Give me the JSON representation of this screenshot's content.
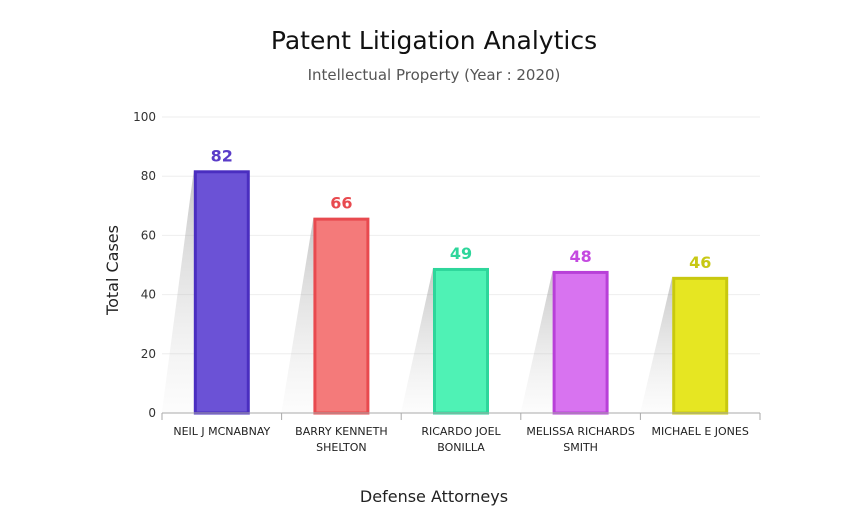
{
  "chart_data": {
    "type": "bar",
    "title": "Patent Litigation Analytics",
    "subtitle": "Intellectual Property (Year : 2020)",
    "xlabel": "Defense Attorneys",
    "ylabel": "Total Cases",
    "ylim": [
      0,
      100
    ],
    "yticks": [
      0,
      20,
      40,
      60,
      80,
      100
    ],
    "grid": true,
    "categories": [
      [
        "NEIL J MCNABNAY"
      ],
      [
        "BARRY KENNETH",
        "SHELTON"
      ],
      [
        "RICARDO JOEL",
        "BONILLA"
      ],
      [
        "MELISSA RICHARDS",
        "SMITH"
      ],
      [
        "MICHAEL E JONES"
      ]
    ],
    "values": [
      82,
      66,
      49,
      48,
      46
    ],
    "colors": [
      {
        "fill": "#6b52d6",
        "stroke": "#4a2ec0",
        "label": "#5a3cc8"
      },
      {
        "fill": "#f47a7a",
        "stroke": "#e84a4f",
        "label": "#e84a4f"
      },
      {
        "fill": "#4ff2b5",
        "stroke": "#2ed69b",
        "label": "#2ed69b"
      },
      {
        "fill": "#d873f0",
        "stroke": "#b840d8",
        "label": "#c44ae0"
      },
      {
        "fill": "#e6e622",
        "stroke": "#c8c810",
        "label": "#c8c814"
      }
    ]
  }
}
